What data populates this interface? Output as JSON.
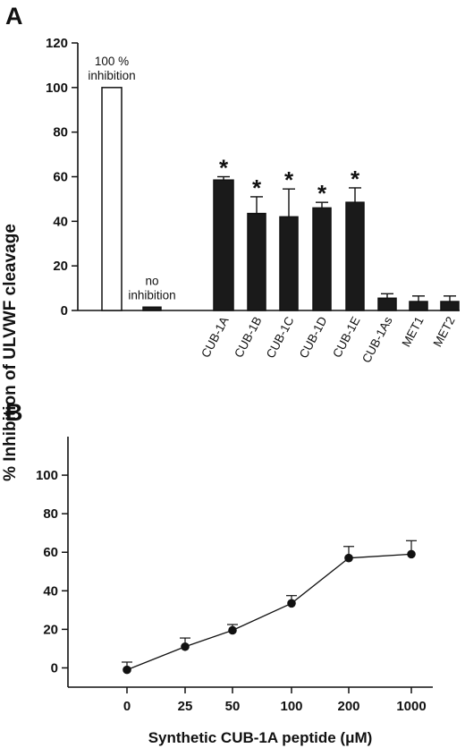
{
  "figure": {
    "ylabel": "% Inhibition of ULVWF cleavage",
    "colors": {
      "ink": "#111111",
      "open_bar": "#ffffff",
      "filled_bar": "#1a1a1a",
      "background": "#ffffff"
    }
  },
  "chart_data": [
    {
      "panel": "A",
      "type": "bar",
      "categories": [
        "",
        "",
        "CUB-1A",
        "CUB-1B",
        "CUB-1C",
        "CUB-1D",
        "CUB-1E",
        "CUB-1As",
        "MET1",
        "MET2"
      ],
      "values": [
        100,
        1.5,
        58.5,
        43.5,
        42,
        46,
        48.5,
        5.5,
        4,
        4
      ],
      "errors": [
        0,
        0,
        1.5,
        7.5,
        12.5,
        2.5,
        6.5,
        2,
        2.5,
        2.5
      ],
      "fills": [
        "open",
        "filled",
        "filled",
        "filled",
        "filled",
        "filled",
        "filled",
        "filled",
        "filled",
        "filled"
      ],
      "significant": [
        false,
        false,
        true,
        true,
        true,
        true,
        true,
        false,
        false,
        false
      ],
      "star_symbol": "*",
      "annotations": [
        {
          "bar": 0,
          "lines": [
            "100  %",
            "inhibition"
          ]
        },
        {
          "bar": 1,
          "lines": [
            "no",
            "inhibition"
          ]
        }
      ],
      "ylim": [
        0,
        120
      ],
      "yticks": [
        0,
        20,
        40,
        60,
        80,
        100,
        120
      ],
      "ylabel": "% Inhibition of ULVWF cleavage",
      "xlabel": ""
    },
    {
      "panel": "B",
      "type": "line",
      "x": [
        "0",
        "25",
        "50",
        "100",
        "200",
        "1000"
      ],
      "y": [
        -1,
        11,
        19.5,
        33.5,
        57,
        59
      ],
      "errors": [
        4,
        4.5,
        3,
        4,
        6,
        7
      ],
      "ylim": [
        -10,
        120
      ],
      "yticks": [
        0,
        20,
        40,
        60,
        80,
        100
      ],
      "ylabel": "",
      "xlabel": "Synthetic CUB-1A peptide (μM)"
    }
  ]
}
